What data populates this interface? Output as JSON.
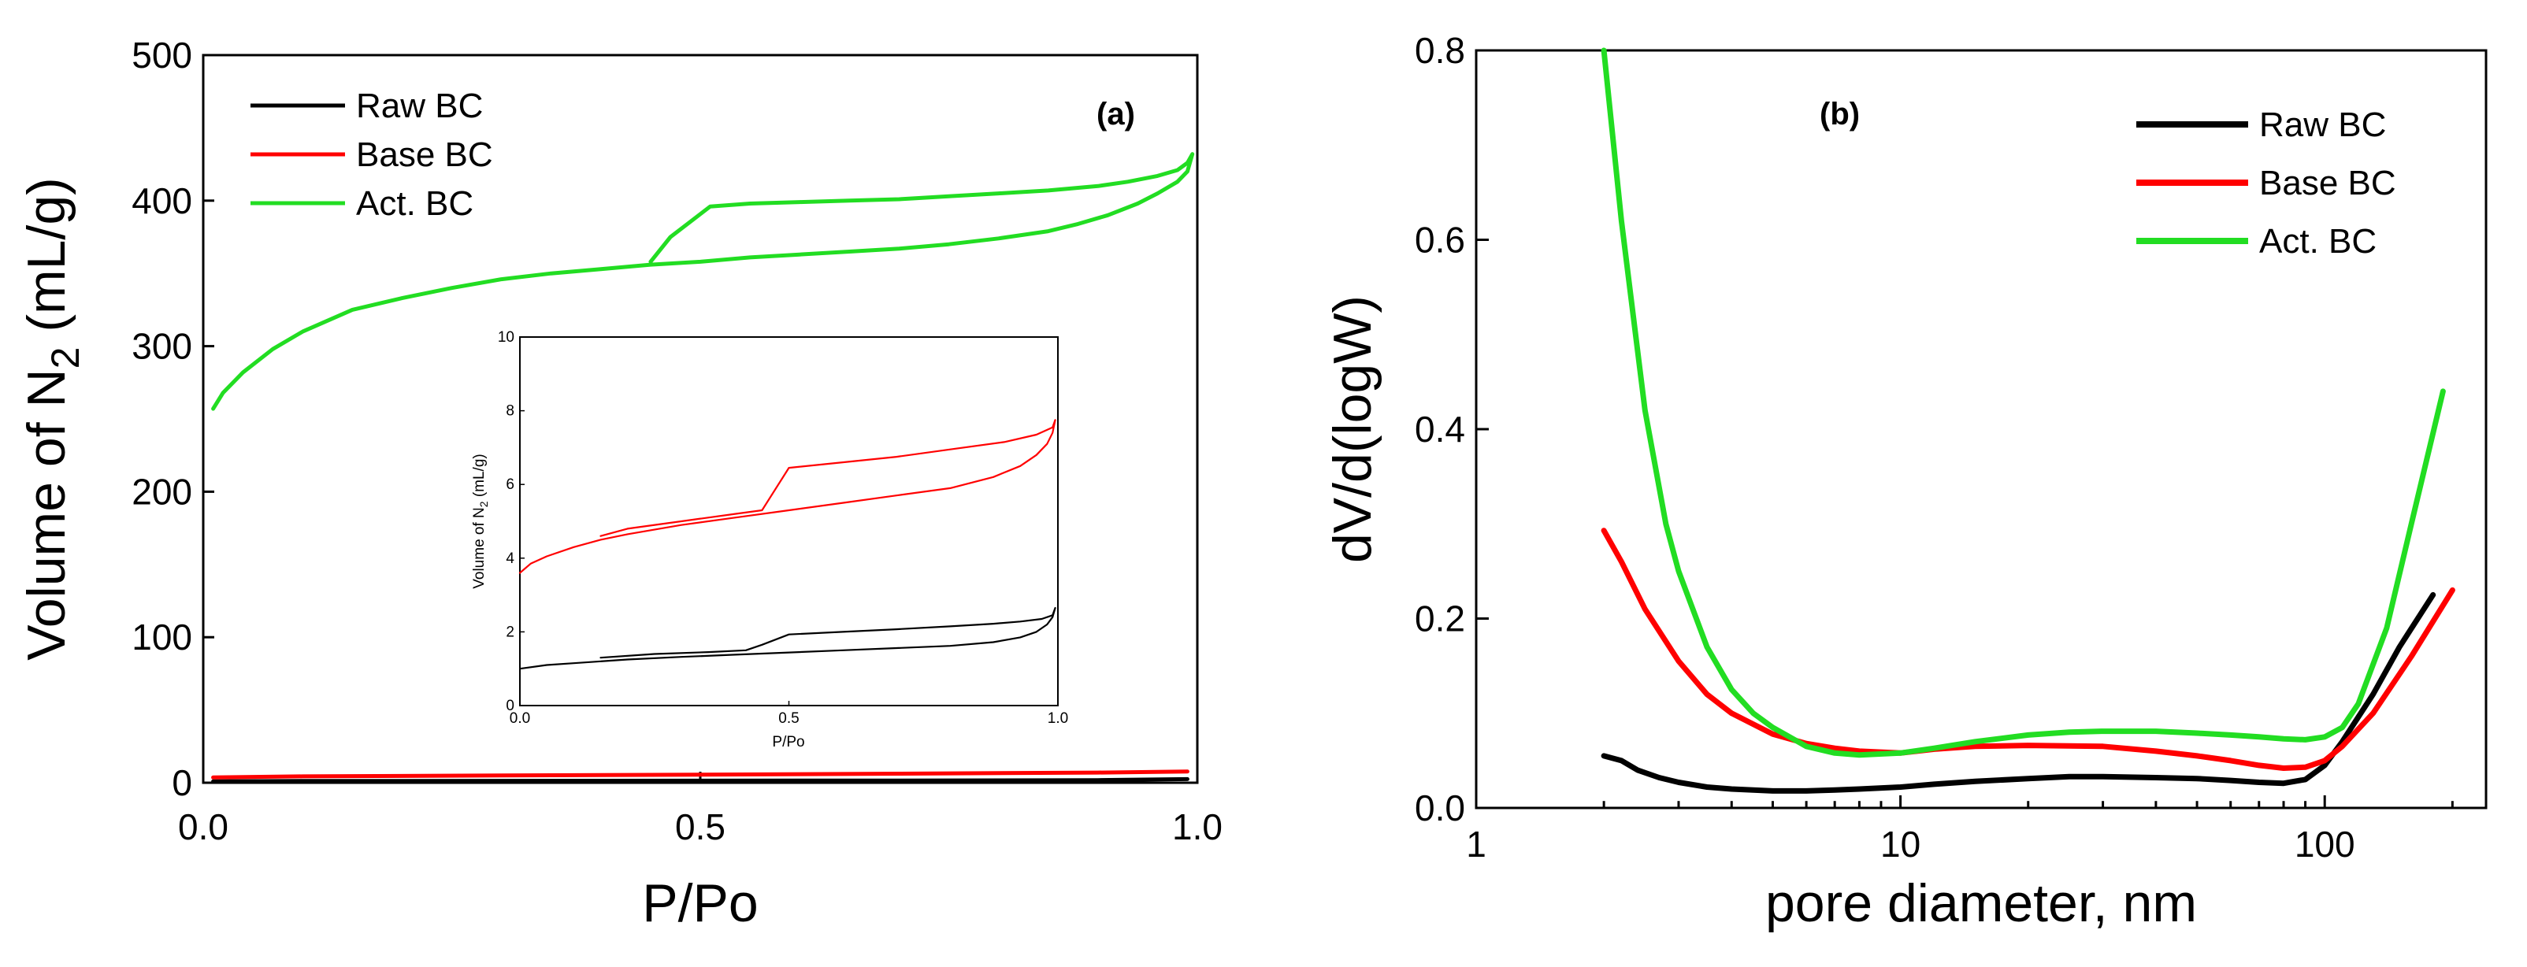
{
  "chart_data": [
    {
      "type": "line",
      "panel_label": "(a)",
      "xlabel": "P/Po",
      "ylabel_main": "Volume of N",
      "ylabel_sub": "2",
      "ylabel_unit": " (mL/g)",
      "xlim": [
        0,
        1
      ],
      "ylim": [
        0,
        500
      ],
      "xticks": [
        0,
        0.5,
        1
      ],
      "xtick_labels": [
        "0.0",
        "0.5",
        "1.0"
      ],
      "yticks": [
        0,
        100,
        200,
        300,
        400,
        500
      ],
      "ytick_labels": [
        "0",
        "100",
        "200",
        "300",
        "400",
        "500"
      ],
      "legend": [
        "Raw BC",
        "Base BC",
        "Act. BC"
      ],
      "colors": [
        "#000000",
        "#ff0000",
        "#22dd22"
      ],
      "series": [
        {
          "name": "Raw BC",
          "x": [
            0.01,
            0.1,
            0.3,
            0.5,
            0.7,
            0.9,
            0.99
          ],
          "y": [
            1.0,
            1.2,
            1.3,
            1.4,
            1.5,
            1.8,
            2.5
          ]
        },
        {
          "name": "Base BC",
          "x": [
            0.01,
            0.1,
            0.3,
            0.5,
            0.7,
            0.9,
            0.99
          ],
          "y": [
            3.6,
            4.4,
            5.0,
            5.6,
            6.2,
            7.0,
            7.7
          ]
        },
        {
          "name": "Act. BC",
          "x": [
            0.01,
            0.02,
            0.04,
            0.07,
            0.1,
            0.15,
            0.2,
            0.25,
            0.3,
            0.35,
            0.4,
            0.45,
            0.5,
            0.55,
            0.6,
            0.65,
            0.7,
            0.75,
            0.8,
            0.85,
            0.88,
            0.91,
            0.94,
            0.96,
            0.98,
            0.99,
            0.995,
            0.99,
            0.98,
            0.96,
            0.93,
            0.9,
            0.85,
            0.8,
            0.75,
            0.7,
            0.65,
            0.6,
            0.55,
            0.51,
            0.47,
            0.45
          ],
          "y": [
            257,
            268,
            282,
            298,
            310,
            325,
            333,
            340,
            346,
            350,
            353,
            356,
            358,
            361,
            363,
            365,
            367,
            370,
            374,
            379,
            384,
            390,
            398,
            405,
            413,
            420,
            432,
            426,
            421,
            417,
            413,
            410,
            407,
            405,
            403,
            401,
            400,
            399,
            398,
            396,
            375,
            358
          ]
        }
      ],
      "inset": {
        "xlabel": "P/Po",
        "ylabel_main": "Volume of N",
        "ylabel_sub": "2",
        "ylabel_unit": " (mL/g)",
        "xlim": [
          0,
          1
        ],
        "ylim": [
          0,
          10
        ],
        "xticks": [
          0,
          0.5,
          1
        ],
        "xtick_labels": [
          "0.0",
          "0.5",
          "1.0"
        ],
        "yticks": [
          0,
          2,
          4,
          6,
          8,
          10
        ],
        "ytick_labels": [
          "0",
          "2",
          "4",
          "6",
          "8",
          "10"
        ],
        "series": [
          {
            "name": "Raw BC",
            "x": [
              0.0,
              0.05,
              0.1,
              0.2,
              0.3,
              0.4,
              0.5,
              0.6,
              0.7,
              0.8,
              0.88,
              0.93,
              0.96,
              0.98,
              0.99,
              0.995,
              0.99,
              0.97,
              0.93,
              0.88,
              0.8,
              0.7,
              0.6,
              0.5,
              0.45,
              0.42,
              0.35,
              0.25,
              0.15
            ],
            "y": [
              1.0,
              1.1,
              1.15,
              1.25,
              1.32,
              1.38,
              1.44,
              1.5,
              1.56,
              1.62,
              1.72,
              1.85,
              2.0,
              2.2,
              2.4,
              2.65,
              2.45,
              2.35,
              2.28,
              2.22,
              2.15,
              2.07,
              2.0,
              1.93,
              1.65,
              1.5,
              1.45,
              1.4,
              1.3
            ]
          },
          {
            "name": "Base BC",
            "x": [
              0.0,
              0.02,
              0.05,
              0.1,
              0.15,
              0.2,
              0.3,
              0.4,
              0.5,
              0.6,
              0.7,
              0.8,
              0.88,
              0.93,
              0.96,
              0.98,
              0.99,
              0.995,
              0.99,
              0.96,
              0.9,
              0.8,
              0.7,
              0.6,
              0.5,
              0.45,
              0.4,
              0.3,
              0.2,
              0.15
            ],
            "y": [
              3.6,
              3.85,
              4.05,
              4.3,
              4.5,
              4.65,
              4.9,
              5.1,
              5.3,
              5.5,
              5.7,
              5.9,
              6.2,
              6.5,
              6.8,
              7.1,
              7.4,
              7.75,
              7.55,
              7.35,
              7.15,
              6.95,
              6.75,
              6.6,
              6.45,
              5.3,
              5.2,
              5.0,
              4.8,
              4.6
            ]
          }
        ]
      }
    },
    {
      "type": "line",
      "panel_label": "(b)",
      "xlabel": "pore diameter, nm",
      "ylabel": "dV/d(logW)",
      "xscale": "log",
      "xlim": [
        1,
        240
      ],
      "ylim": [
        0,
        0.8
      ],
      "xticks": [
        1,
        10,
        100
      ],
      "xtick_labels": [
        "1",
        "10",
        "100"
      ],
      "yticks": [
        0,
        0.2,
        0.4,
        0.6,
        0.8
      ],
      "ytick_labels": [
        "0.0",
        "0.2",
        "0.4",
        "0.6",
        "0.8"
      ],
      "legend": [
        "Raw BC",
        "Base BC",
        "Act. BC"
      ],
      "colors": [
        "#000000",
        "#ff0000",
        "#22dd22"
      ],
      "series": [
        {
          "name": "Raw BC",
          "x": [
            2.0,
            2.2,
            2.4,
            2.7,
            3.0,
            3.5,
            4.0,
            5.0,
            6.0,
            7.0,
            8.0,
            10,
            12,
            15,
            20,
            25,
            30,
            40,
            50,
            60,
            70,
            80,
            90,
            100,
            110,
            130,
            150,
            180
          ],
          "y": [
            0.055,
            0.05,
            0.04,
            0.032,
            0.027,
            0.022,
            0.02,
            0.018,
            0.018,
            0.019,
            0.02,
            0.022,
            0.025,
            0.028,
            0.031,
            0.033,
            0.033,
            0.032,
            0.031,
            0.029,
            0.027,
            0.026,
            0.03,
            0.045,
            0.07,
            0.12,
            0.17,
            0.225
          ]
        },
        {
          "name": "Base BC",
          "x": [
            2.0,
            2.2,
            2.5,
            3.0,
            3.5,
            4.0,
            5.0,
            6.0,
            7.0,
            8.0,
            10,
            12,
            15,
            20,
            30,
            40,
            50,
            60,
            70,
            80,
            90,
            100,
            110,
            130,
            160,
            200
          ],
          "y": [
            0.293,
            0.26,
            0.21,
            0.155,
            0.12,
            0.1,
            0.078,
            0.068,
            0.063,
            0.06,
            0.058,
            0.062,
            0.065,
            0.066,
            0.065,
            0.06,
            0.055,
            0.05,
            0.045,
            0.042,
            0.043,
            0.05,
            0.065,
            0.1,
            0.16,
            0.23
          ]
        },
        {
          "name": "Act. BC",
          "x": [
            2.0,
            2.2,
            2.5,
            2.8,
            3.0,
            3.5,
            4.0,
            4.5,
            5.0,
            6.0,
            7.0,
            8.0,
            10,
            12,
            15,
            20,
            25,
            30,
            40,
            50,
            60,
            70,
            80,
            90,
            100,
            110,
            120,
            140,
            160,
            190
          ],
          "y": [
            0.8,
            0.62,
            0.42,
            0.3,
            0.25,
            0.17,
            0.125,
            0.1,
            0.085,
            0.065,
            0.058,
            0.056,
            0.058,
            0.063,
            0.07,
            0.077,
            0.08,
            0.081,
            0.081,
            0.079,
            0.077,
            0.075,
            0.073,
            0.072,
            0.075,
            0.085,
            0.11,
            0.19,
            0.3,
            0.44
          ]
        }
      ]
    }
  ]
}
